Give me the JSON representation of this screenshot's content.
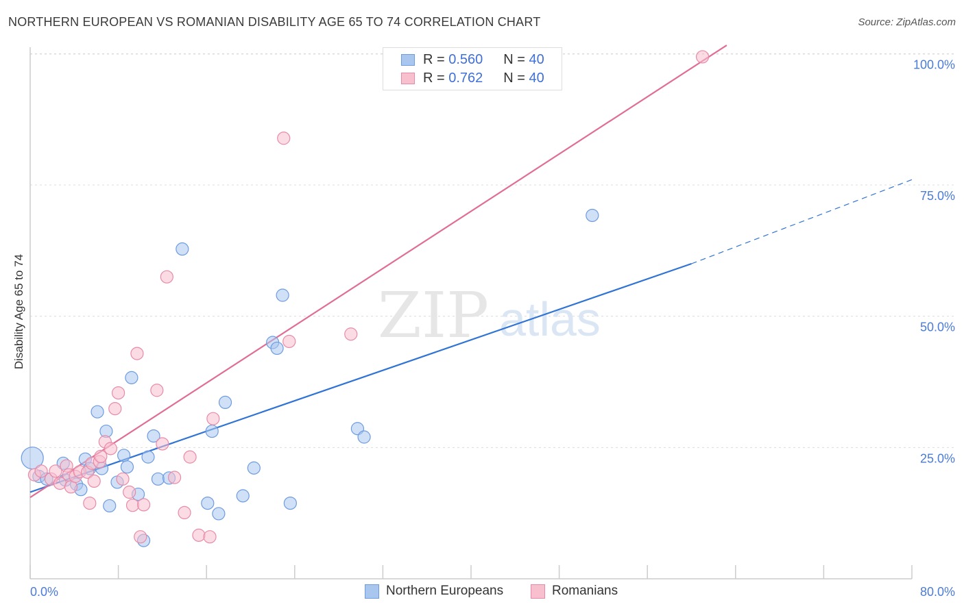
{
  "header": {
    "title": "NORTHERN EUROPEAN VS ROMANIAN DISABILITY AGE 65 TO 74 CORRELATION CHART",
    "source": "Source: ZipAtlas.com"
  },
  "watermark": {
    "zip": "ZIP",
    "atlas": "atlas"
  },
  "legend": {
    "r_label": "R =",
    "n_label": "N =",
    "rows": [
      {
        "r": "0.560",
        "n": "40",
        "color": "#a9c6ef",
        "border": "#6d9be0"
      },
      {
        "r": "0.762",
        "n": "40",
        "color": "#f8c0cf",
        "border": "#e88aa7"
      }
    ]
  },
  "chart_data": {
    "type": "scatter",
    "title": "NORTHERN EUROPEAN VS ROMANIAN DISABILITY AGE 65 TO 74 CORRELATION CHART",
    "xlabel": "",
    "ylabel": "Disability Age 65 to 74",
    "xlim": [
      0,
      80
    ],
    "ylim": [
      0,
      102
    ],
    "x_tick_labels": [
      "0.0%",
      "80.0%"
    ],
    "y_tick_labels": [
      {
        "value": 25,
        "label": "25.0%"
      },
      {
        "value": 50,
        "label": "50.0%"
      },
      {
        "value": 75,
        "label": "75.0%"
      },
      {
        "value": 100,
        "label": "100.0%"
      }
    ],
    "series": [
      {
        "name": "Northern Europeans",
        "color": "#6d9be0",
        "fill": "#a9c6ef",
        "trend": {
          "x0": 0,
          "y0": 16.5,
          "x1": 60,
          "y1": 60,
          "dash_to_x": 80,
          "dash_to_y": 76
        },
        "points": [
          [
            0.2,
            23.0,
            16
          ],
          [
            0.8,
            19.5,
            9
          ],
          [
            1.5,
            19.0,
            9
          ],
          [
            3.0,
            22.0,
            9
          ],
          [
            3.2,
            18.8,
            9
          ],
          [
            4.2,
            18.0,
            9
          ],
          [
            4.6,
            17.0,
            9
          ],
          [
            5.0,
            22.8,
            9
          ],
          [
            5.4,
            21.0,
            9
          ],
          [
            6.1,
            31.8,
            9
          ],
          [
            6.5,
            21.0,
            9
          ],
          [
            6.9,
            28.1,
            9
          ],
          [
            7.2,
            13.9,
            9
          ],
          [
            7.9,
            18.4,
            9
          ],
          [
            8.5,
            23.5,
            9
          ],
          [
            8.8,
            21.3,
            9
          ],
          [
            9.2,
            38.3,
            9
          ],
          [
            9.8,
            16.1,
            9
          ],
          [
            10.3,
            7.3,
            9
          ],
          [
            10.7,
            23.2,
            9
          ],
          [
            11.2,
            27.2,
            9
          ],
          [
            11.6,
            19.0,
            9
          ],
          [
            12.6,
            19.2,
            9
          ],
          [
            13.8,
            62.8,
            9
          ],
          [
            16.1,
            14.4,
            9
          ],
          [
            17.1,
            12.4,
            9
          ],
          [
            16.5,
            28.1,
            9
          ],
          [
            17.7,
            33.6,
            9
          ],
          [
            19.3,
            15.8,
            9
          ],
          [
            20.3,
            21.1,
            9
          ],
          [
            22.0,
            45.0,
            9
          ],
          [
            22.4,
            43.9,
            9
          ],
          [
            22.9,
            54.0,
            9
          ],
          [
            23.6,
            14.4,
            9
          ],
          [
            29.7,
            28.6,
            9
          ],
          [
            30.3,
            27.0,
            9
          ],
          [
            51.0,
            69.2,
            9
          ]
        ]
      },
      {
        "name": "Romanians",
        "color": "#e88aa7",
        "fill": "#f8c0cf",
        "trend": {
          "x0": 0,
          "y0": 15.5,
          "x1": 63.2,
          "y1": 101.6
        },
        "points": [
          [
            0.4,
            19.8,
            9
          ],
          [
            1.0,
            20.5,
            9
          ],
          [
            1.9,
            19.0,
            9
          ],
          [
            2.3,
            20.5,
            9
          ],
          [
            2.7,
            18.2,
            9
          ],
          [
            3.3,
            21.5,
            9
          ],
          [
            3.5,
            19.8,
            9
          ],
          [
            3.7,
            17.5,
            9
          ],
          [
            4.1,
            19.5,
            9
          ],
          [
            4.5,
            20.4,
            9
          ],
          [
            5.2,
            20.3,
            9
          ],
          [
            5.4,
            14.4,
            9
          ],
          [
            5.6,
            22.0,
            9
          ],
          [
            5.8,
            18.6,
            9
          ],
          [
            6.3,
            22.3,
            9
          ],
          [
            6.4,
            23.3,
            9
          ],
          [
            6.8,
            26.1,
            9
          ],
          [
            7.3,
            24.8,
            9
          ],
          [
            7.7,
            32.4,
            9
          ],
          [
            8.0,
            35.4,
            9
          ],
          [
            8.4,
            19.0,
            9
          ],
          [
            9.0,
            16.5,
            9
          ],
          [
            9.3,
            14.0,
            9
          ],
          [
            9.7,
            42.9,
            9
          ],
          [
            10.0,
            8.0,
            9
          ],
          [
            10.3,
            14.1,
            9
          ],
          [
            11.5,
            35.9,
            9
          ],
          [
            12.0,
            25.7,
            9
          ],
          [
            12.4,
            57.5,
            9
          ],
          [
            13.1,
            19.3,
            9
          ],
          [
            14.0,
            12.6,
            9
          ],
          [
            14.5,
            23.2,
            9
          ],
          [
            15.3,
            8.3,
            9
          ],
          [
            16.3,
            8.0,
            9
          ],
          [
            16.6,
            30.5,
            9
          ],
          [
            23.0,
            83.9,
            9
          ],
          [
            23.5,
            45.2,
            9
          ],
          [
            29.1,
            46.6,
            9
          ],
          [
            61.0,
            99.4,
            9
          ]
        ]
      }
    ]
  },
  "bottom_legend": {
    "items": [
      {
        "label": "Northern Europeans"
      },
      {
        "label": "Romanians"
      }
    ]
  }
}
